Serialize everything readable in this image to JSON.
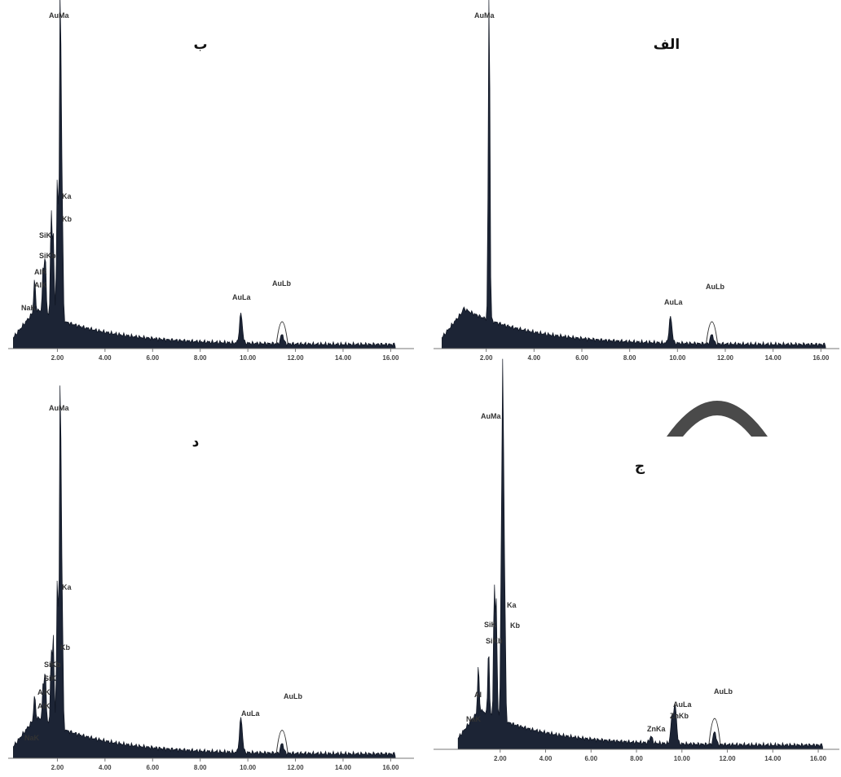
{
  "chart_data": [
    {
      "type": "area",
      "panel_label": "الف",
      "xlim": [
        0,
        16.5
      ],
      "ylim": [
        0,
        100
      ],
      "x_ticks": [
        "2.00",
        "4.00",
        "6.00",
        "8.00",
        "10.00",
        "12.00",
        "14.00",
        "16.00"
      ],
      "peaks": [
        {
          "label": "AuMa",
          "x": 2.12,
          "y": 100
        },
        {
          "label": "AuLa",
          "x": 9.71,
          "y": 8
        },
        {
          "label": "AuLb",
          "x": 11.44,
          "y": 3
        }
      ],
      "elements_present": [
        "Au"
      ]
    },
    {
      "type": "area",
      "panel_label": "ب",
      "xlim": [
        0,
        16.5
      ],
      "ylim": [
        0,
        100
      ],
      "x_ticks": [
        "2.00",
        "4.00",
        "6.00",
        "8.00",
        "10.00",
        "12.00",
        "14.00",
        "16.00"
      ],
      "peaks": [
        {
          "label": "AuMa",
          "x": 2.12,
          "y": 100
        },
        {
          "label": "Ka",
          "x": 2.0,
          "y": 44
        },
        {
          "label": "Kb",
          "x": 2.2,
          "y": 37
        },
        {
          "label": "SiK",
          "x": 1.74,
          "y": 31
        },
        {
          "label": "SiKb",
          "x": 1.83,
          "y": 24
        },
        {
          "label": "AlK",
          "x": 1.49,
          "y": 18
        },
        {
          "label": "AlK",
          "x": 1.4,
          "y": 13
        },
        {
          "label": "NaK",
          "x": 1.04,
          "y": 9
        },
        {
          "label": "AuLa",
          "x": 9.71,
          "y": 9
        },
        {
          "label": "AuLb",
          "x": 11.44,
          "y": 3
        }
      ],
      "elements_present": [
        "Au",
        "Si",
        "Al",
        "Na"
      ]
    },
    {
      "type": "area",
      "panel_label": "ج",
      "xlim": [
        0,
        16.5
      ],
      "ylim": [
        0,
        100
      ],
      "x_ticks": [
        "2.00",
        "4.00",
        "6.00",
        "8.00",
        "10.00",
        "12.00",
        "14.00",
        "16.00"
      ],
      "peaks": [
        {
          "label": "AuMa",
          "x": 2.12,
          "y": 100
        },
        {
          "label": "Ka",
          "x": 2.05,
          "y": 43
        },
        {
          "label": "Kb",
          "x": 2.2,
          "y": 38
        },
        {
          "label": "SiK",
          "x": 1.74,
          "y": 38
        },
        {
          "label": "SiKb",
          "x": 1.83,
          "y": 34
        },
        {
          "label": "Al",
          "x": 1.49,
          "y": 20
        },
        {
          "label": "NaK",
          "x": 1.04,
          "y": 13
        },
        {
          "label": "ZnKa",
          "x": 8.64,
          "y": 2
        },
        {
          "label": "AuLa",
          "x": 9.71,
          "y": 11
        },
        {
          "label": "ZnKb",
          "x": 9.57,
          "y": 8
        },
        {
          "label": "AuLb",
          "x": 11.44,
          "y": 4
        }
      ],
      "elements_present": [
        "Au",
        "Si",
        "Al",
        "Na",
        "Zn"
      ]
    },
    {
      "type": "area",
      "panel_label": "د",
      "xlim": [
        0,
        16.5
      ],
      "ylim": [
        0,
        100
      ],
      "x_ticks": [
        "2.00",
        "4.00",
        "6.00",
        "8.00",
        "10.00",
        "12.00",
        "14.00",
        "16.00"
      ],
      "peaks": [
        {
          "label": "AuMa",
          "x": 2.12,
          "y": 100
        },
        {
          "label": "Ka",
          "x": 2.0,
          "y": 44
        },
        {
          "label": "Kb",
          "x": 2.2,
          "y": 37
        },
        {
          "label": "SiKb",
          "x": 1.83,
          "y": 25
        },
        {
          "label": "SiK",
          "x": 1.74,
          "y": 20
        },
        {
          "label": "AlK",
          "x": 1.49,
          "y": 15
        },
        {
          "label": "AlK",
          "x": 1.4,
          "y": 10
        },
        {
          "label": "NaK",
          "x": 1.04,
          "y": 6
        },
        {
          "label": "AuLa",
          "x": 9.71,
          "y": 10
        },
        {
          "label": "AuLb",
          "x": 11.44,
          "y": 3
        }
      ],
      "elements_present": [
        "Au",
        "Si",
        "Al",
        "Na"
      ]
    }
  ],
  "panels": {
    "top_left": {
      "label": "ب",
      "title_peak": "AuMa",
      "peaks": {
        "ka": "Ka",
        "kb": "Kb",
        "sik": "SiK",
        "sikb": "SiKb",
        "alk1": "AlK",
        "alk2": "AlK",
        "na": "NaK",
        "aula": "AuLa",
        "aulb": "AuLb"
      }
    },
    "top_right": {
      "label": "الف",
      "title_peak": "AuMa",
      "peaks": {
        "aula": "AuLa",
        "aulb": "AuLb"
      }
    },
    "bottom_left": {
      "label": "د",
      "title_peak": "AuMa",
      "peaks": {
        "ka": "Ka",
        "kb": "Kb",
        "sikb": "SiKb",
        "sik": "SiK",
        "alk1": "AlK",
        "alk2": "AlK",
        "na": "NaK",
        "aula": "AuLa",
        "aulb": "AuLb"
      }
    },
    "bottom_right": {
      "label": "ج",
      "title_peak": "AuMa",
      "peaks": {
        "ka": "Ka",
        "kb": "Kb",
        "sik": "SiK",
        "sikb": "SiKb",
        "al": "Al",
        "na": "NaK",
        "znka": "ZnKa",
        "aula": "AuLa",
        "znkb": "ZnKb",
        "aulb": "AuLb"
      }
    }
  },
  "colors": {
    "spectrum_fill": "#1c2435",
    "decor_arc": "#4a4a4a"
  }
}
